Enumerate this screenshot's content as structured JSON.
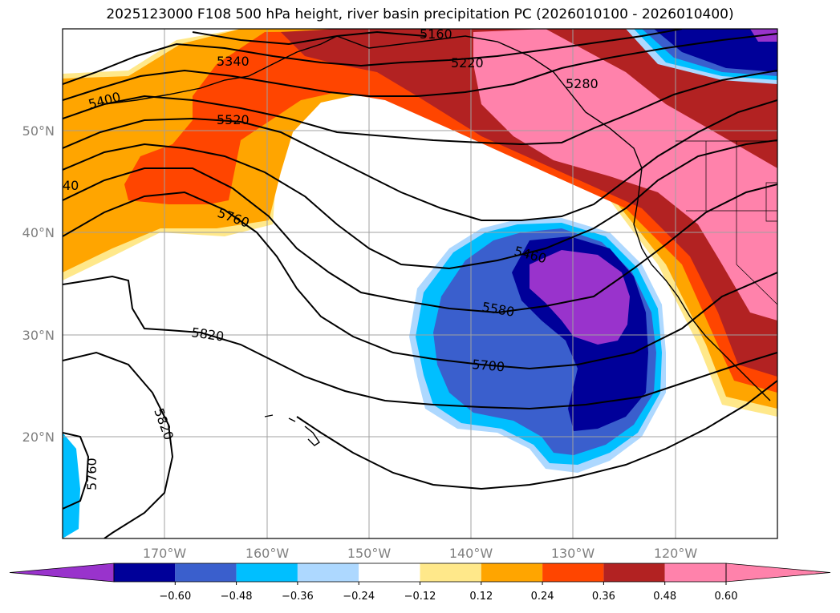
{
  "title": "2025123000 F108 500 hPa height, river basin precipitation PC (2026010100 - 2026010400)",
  "map": {
    "lat_labels": [
      "50°N",
      "40°N",
      "30°N",
      "20°N"
    ],
    "lon_labels": [
      "170°W",
      "160°W",
      "150°W",
      "140°W",
      "130°W",
      "120°W"
    ],
    "contour_labels": [
      "5160",
      "5220",
      "5280",
      "5340",
      "5400",
      "5520",
      "40",
      "5760",
      "5460",
      "5580",
      "5700",
      "5820",
      "5820",
      "5760"
    ]
  },
  "colorbar": {
    "colors": [
      "#9933cc",
      "#000099",
      "#3a5fcd",
      "#00bfff",
      "#add8ff",
      "#ffffff",
      "#ffe88a",
      "#ffa500",
      "#ff4500",
      "#b22222",
      "#ff82ab",
      "#ff82ab"
    ],
    "tick_labels": [
      "-0.60",
      "-0.48",
      "-0.36",
      "-0.24",
      "-0.12",
      "0.12",
      "0.24",
      "0.36",
      "0.48",
      "0.60"
    ]
  }
}
